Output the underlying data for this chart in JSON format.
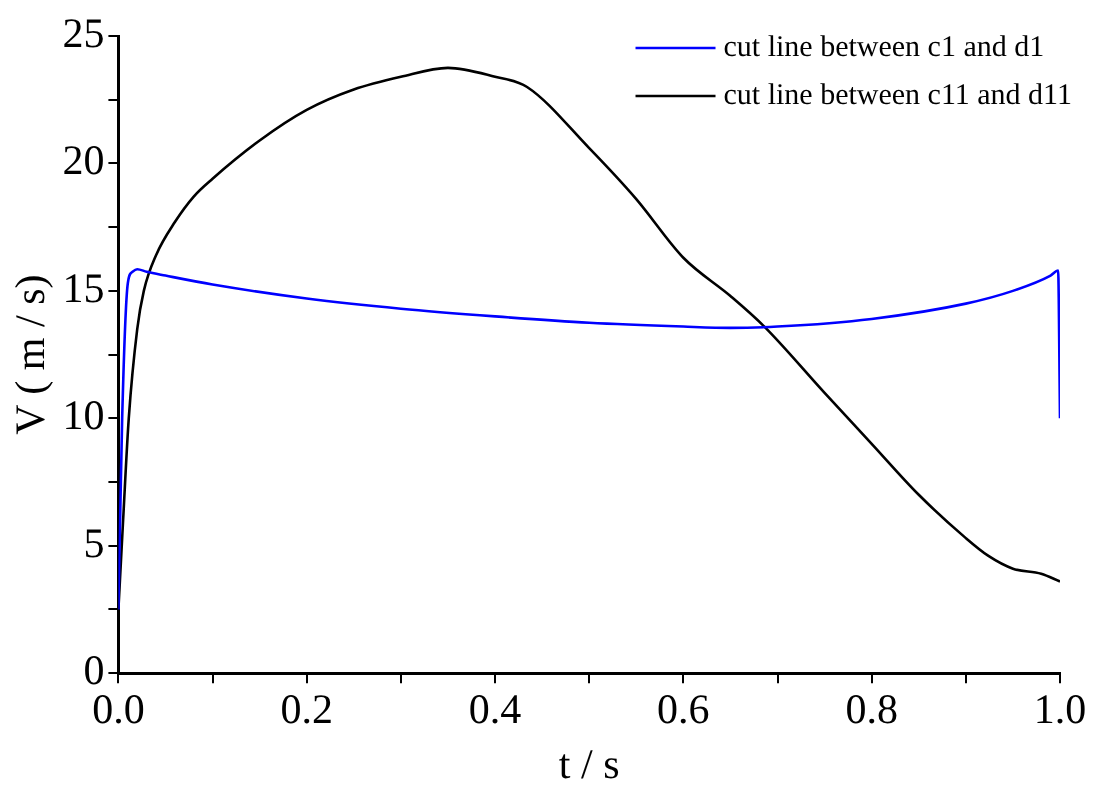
{
  "chart_data": {
    "type": "line",
    "xlabel": "t / s",
    "ylabel": "V ( m / s)",
    "xlim": [
      0,
      1
    ],
    "ylim": [
      0,
      25
    ],
    "xticks": [
      {
        "value": 0,
        "label": "0.0"
      },
      {
        "value": 0.1,
        "label": null
      },
      {
        "value": 0.2,
        "label": "0.2"
      },
      {
        "value": 0.3,
        "label": null
      },
      {
        "value": 0.4,
        "label": "0.4"
      },
      {
        "value": 0.5,
        "label": null
      },
      {
        "value": 0.6,
        "label": "0.6"
      },
      {
        "value": 0.7,
        "label": null
      },
      {
        "value": 0.8,
        "label": "0.8"
      },
      {
        "value": 0.9,
        "label": null
      },
      {
        "value": 1,
        "label": "1.0"
      }
    ],
    "yticks": [
      0,
      {
        "value": 2.5,
        "label": null
      },
      5,
      {
        "value": 7.5,
        "label": null
      },
      10,
      {
        "value": 12.5,
        "label": null
      },
      15,
      {
        "value": 17.5,
        "label": null
      },
      20,
      {
        "value": 22.5,
        "label": null
      },
      25
    ],
    "grid": false,
    "legend": "top right",
    "marker": "none",
    "line_style": "solid",
    "series": [
      {
        "name": "cut line between c1 and d1",
        "color": "#0000ff",
        "x": [
          0,
          0.004,
          0.01,
          0.015,
          0.02,
          0.03,
          0.05,
          0.1,
          0.2,
          0.3,
          0.4,
          0.5,
          0.6,
          0.65,
          0.7,
          0.8,
          0.9,
          0.95,
          0.99,
          0.998,
          1.0
        ],
        "values": [
          2.5,
          10,
          15.3,
          15.75,
          15.85,
          15.75,
          15.6,
          15.25,
          14.7,
          14.3,
          14.0,
          13.75,
          13.6,
          13.55,
          13.6,
          13.9,
          14.5,
          15.0,
          15.6,
          15.8,
          10.0
        ]
      },
      {
        "name": "cut line between c11 and d11",
        "color": "#000000",
        "x": [
          0,
          0.005,
          0.011,
          0.02,
          0.027,
          0.04,
          0.06,
          0.08,
          0.1,
          0.15,
          0.2,
          0.25,
          0.3,
          0.35,
          0.4,
          0.434,
          0.5,
          0.55,
          0.6,
          0.65,
          0.686,
          0.75,
          0.8,
          0.85,
          0.9,
          0.924,
          0.95,
          0.98,
          1.0
        ],
        "values": [
          2.5,
          6,
          10,
          13.5,
          15,
          16.4,
          17.7,
          18.7,
          19.4,
          20.9,
          22.1,
          22.9,
          23.4,
          23.75,
          23.4,
          23.0,
          20.6,
          18.6,
          16.3,
          14.8,
          13.6,
          11.0,
          9.0,
          7.0,
          5.3,
          4.6,
          4.1,
          3.9,
          3.6
        ]
      }
    ]
  }
}
